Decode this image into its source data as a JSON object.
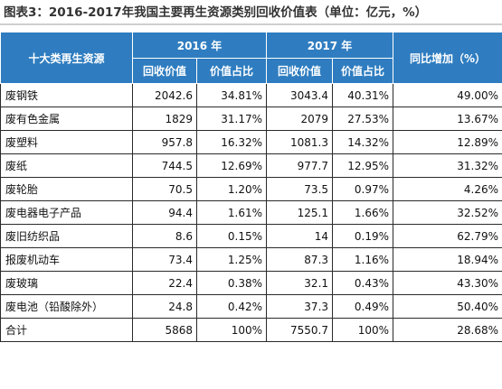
{
  "title": "图表3：2016-2017年我国主要再生资源类别回收价值表（单位：亿元，%）",
  "table": {
    "header": {
      "category": "十大类再生资源",
      "year_2016": "2016 年",
      "year_2017": "2017 年",
      "growth": "同比增加（%）",
      "value": "回收价值",
      "share": "价值占比"
    },
    "rows": [
      [
        "废钢铁",
        "2042.6",
        "34.81%",
        "3043.4",
        "40.31%",
        "49.00%"
      ],
      [
        "废有色金属",
        "1829",
        "31.17%",
        "2079",
        "27.53%",
        "13.67%"
      ],
      [
        "废塑料",
        "957.8",
        "16.32%",
        "1081.3",
        "14.32%",
        "12.89%"
      ],
      [
        "废纸",
        "744.5",
        "12.69%",
        "977.7",
        "12.95%",
        "31.32%"
      ],
      [
        "废轮胎",
        "70.5",
        "1.20%",
        "73.5",
        "0.97%",
        "4.26%"
      ],
      [
        "废电器电子产品",
        "94.4",
        "1.61%",
        "125.1",
        "1.66%",
        "32.52%"
      ],
      [
        "废旧纺织品",
        "8.6",
        "0.15%",
        "14",
        "0.19%",
        "62.79%"
      ],
      [
        "报废机动车",
        "73.4",
        "1.25%",
        "87.3",
        "1.16%",
        "18.94%"
      ],
      [
        "废玻璃",
        "22.4",
        "0.38%",
        "32.1",
        "0.43%",
        "43.30%"
      ],
      [
        "废电池（铅酸除外）",
        "24.8",
        "0.42%",
        "37.3",
        "0.49%",
        "50.40%"
      ],
      [
        "合计",
        "5868",
        "100%",
        "7550.7",
        "100%",
        "28.68%"
      ]
    ]
  },
  "colors": {
    "header_bg": "#2f7dc0",
    "header_text": "#ffffff",
    "border": "#2a2a2a"
  }
}
